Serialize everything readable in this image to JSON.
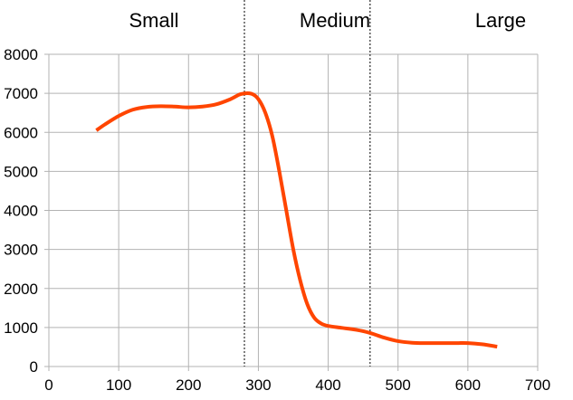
{
  "chart_data": {
    "type": "line",
    "title": "",
    "xlabel": "",
    "ylabel": "",
    "xlim": [
      0,
      700
    ],
    "ylim": [
      0,
      8000
    ],
    "x_ticks": [
      "0",
      "100",
      "200",
      "300",
      "400",
      "500",
      "600",
      "700"
    ],
    "y_ticks": [
      "0",
      "1000",
      "2000",
      "3000",
      "4000",
      "5000",
      "6000",
      "7000",
      "8000"
    ],
    "grid": true,
    "legend": "none",
    "series": [
      {
        "name": "",
        "color": "#ff4500",
        "points": [
          [
            68,
            6050
          ],
          [
            80,
            6200
          ],
          [
            100,
            6420
          ],
          [
            120,
            6580
          ],
          [
            140,
            6650
          ],
          [
            160,
            6670
          ],
          [
            180,
            6660
          ],
          [
            200,
            6640
          ],
          [
            220,
            6660
          ],
          [
            240,
            6720
          ],
          [
            260,
            6850
          ],
          [
            275,
            6980
          ],
          [
            290,
            6990
          ],
          [
            300,
            6850
          ],
          [
            310,
            6500
          ],
          [
            320,
            5900
          ],
          [
            330,
            5000
          ],
          [
            340,
            4000
          ],
          [
            350,
            3000
          ],
          [
            360,
            2200
          ],
          [
            370,
            1600
          ],
          [
            380,
            1250
          ],
          [
            390,
            1100
          ],
          [
            400,
            1040
          ],
          [
            420,
            990
          ],
          [
            440,
            940
          ],
          [
            460,
            860
          ],
          [
            480,
            740
          ],
          [
            500,
            650
          ],
          [
            520,
            610
          ],
          [
            540,
            600
          ],
          [
            560,
            600
          ],
          [
            580,
            600
          ],
          [
            600,
            600
          ],
          [
            620,
            570
          ],
          [
            642,
            510
          ]
        ]
      }
    ],
    "dividers": [
      280,
      460
    ],
    "region_labels": [
      {
        "text": "Small",
        "x": 170
      },
      {
        "text": "Medium",
        "x": 370
      },
      {
        "text": "Large",
        "x": 553
      }
    ]
  }
}
